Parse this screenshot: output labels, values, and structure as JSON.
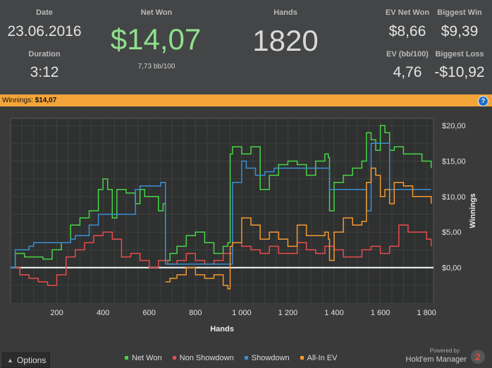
{
  "stats": {
    "date_label": "Date",
    "date": "23.06.2016",
    "duration_label": "Duration",
    "duration": "3:12",
    "net_won_label": "Net Won",
    "net_won": "$14,07",
    "net_won_bb": "7,73 bb/100",
    "hands_label": "Hands",
    "hands": "1820",
    "ev_net_won_label": "EV Net Won",
    "ev_net_won": "$8,66",
    "biggest_win_label": "Biggest Win",
    "biggest_win": "$9,39",
    "ev_bb_label": "EV (bb/100)",
    "ev_bb": "4,76",
    "biggest_loss_label": "Biggest Loss",
    "biggest_loss": "-$10,92"
  },
  "bar": {
    "label": "Winnings:",
    "value": "$14,07",
    "help": "?"
  },
  "chart_data": {
    "type": "line",
    "xlabel": "Hands",
    "ylabel": "Winnings",
    "xlim": [
      0,
      1830
    ],
    "ylim": [
      -5,
      21
    ],
    "xticks": [
      "200",
      "400",
      "600",
      "800",
      "1 000",
      "1 200",
      "1 400",
      "1 600",
      "1 800"
    ],
    "yticks": [
      "$0,00",
      "$5,00",
      "$10,00",
      "$15,00",
      "$20,00"
    ],
    "series": [
      {
        "name": "Net Won",
        "color": "#46d646",
        "x": [
          0,
          20,
          60,
          100,
          140,
          180,
          220,
          260,
          300,
          340,
          380,
          400,
          420,
          440,
          460,
          500,
          540,
          560,
          580,
          620,
          640,
          660,
          670,
          690,
          720,
          760,
          800,
          840,
          880,
          920,
          940,
          950,
          960,
          1000,
          1040,
          1080,
          1120,
          1160,
          1200,
          1240,
          1280,
          1320,
          1360,
          1375,
          1380,
          1400,
          1440,
          1480,
          1520,
          1540,
          1560,
          1580,
          1600,
          1620,
          1640,
          1660,
          1700,
          1740,
          1780,
          1820
        ],
        "y": [
          0,
          2,
          1.5,
          1.5,
          1.2,
          2.5,
          3.5,
          6,
          7,
          8,
          11,
          12.5,
          11,
          7,
          11,
          10.5,
          9,
          11,
          10,
          10,
          8,
          9,
          1,
          2,
          3,
          4.5,
          5,
          3.5,
          2,
          3,
          3.5,
          16,
          17,
          16,
          17,
          11,
          13,
          14.5,
          15,
          14.5,
          13,
          15,
          16,
          15.5,
          8,
          12,
          13,
          14,
          15,
          19,
          18,
          16.5,
          20,
          19,
          16.5,
          17,
          16,
          16,
          15,
          14
        ]
      },
      {
        "name": "Non Showdown",
        "color": "#e84c4c",
        "x": [
          0,
          40,
          80,
          120,
          160,
          200,
          240,
          280,
          320,
          360,
          400,
          440,
          480,
          520,
          560,
          600,
          640,
          680,
          720,
          760,
          800,
          840,
          880,
          920,
          960,
          1000,
          1040,
          1080,
          1120,
          1160,
          1200,
          1240,
          1280,
          1320,
          1360,
          1400,
          1440,
          1480,
          1520,
          1560,
          1600,
          1640,
          1680,
          1720,
          1760,
          1800,
          1820
        ],
        "y": [
          0,
          -1,
          -1.5,
          -2,
          -2.5,
          -1,
          1.5,
          2.5,
          3.5,
          4.5,
          5,
          4,
          1.5,
          2,
          1,
          0,
          1,
          0.5,
          1,
          2,
          1,
          0.5,
          1,
          2,
          3.5,
          3,
          2.5,
          2,
          3,
          2,
          2,
          3.5,
          2.5,
          2,
          3,
          2.5,
          1.5,
          1.5,
          2.5,
          3,
          2,
          3,
          6,
          5,
          5,
          4,
          3
        ]
      },
      {
        "name": "Showdown",
        "color": "#3a8fd6",
        "x": [
          0,
          20,
          80,
          100,
          200,
          260,
          280,
          340,
          380,
          400,
          420,
          500,
          540,
          560,
          580,
          640,
          650,
          670,
          700,
          800,
          900,
          950,
          960,
          1000,
          1020,
          1060,
          1100,
          1140,
          1200,
          1240,
          1300,
          1375,
          1380,
          1400,
          1500,
          1540,
          1560,
          1620,
          1640,
          1680,
          1720,
          1760,
          1820
        ],
        "y": [
          0,
          2.5,
          3,
          3.5,
          3.5,
          4,
          4.5,
          6,
          7.5,
          7.5,
          7.5,
          7.5,
          11,
          11.5,
          11.5,
          11.5,
          12,
          0.5,
          0.5,
          0.5,
          0.5,
          0.5,
          12,
          15,
          14,
          13,
          13.5,
          14,
          14,
          14,
          14,
          14,
          11,
          11,
          11,
          8,
          17.5,
          17.5,
          11,
          11,
          11,
          11,
          11
        ]
      },
      {
        "name": "All-In EV",
        "color": "#f39a2e",
        "x": [
          670,
          690,
          720,
          760,
          800,
          840,
          880,
          920,
          940,
          950,
          960,
          1000,
          1040,
          1080,
          1120,
          1160,
          1200,
          1240,
          1280,
          1320,
          1360,
          1375,
          1380,
          1400,
          1440,
          1480,
          1520,
          1540,
          1560,
          1580,
          1600,
          1620,
          1640,
          1660,
          1700,
          1740,
          1780,
          1820
        ],
        "y": [
          -2,
          -1.5,
          -1,
          0,
          -1,
          -1.5,
          -1,
          -2.5,
          -3,
          3,
          3.5,
          7,
          6,
          4,
          5,
          4,
          3,
          6,
          4.5,
          4.5,
          5,
          4,
          1,
          5,
          7,
          6,
          6.5,
          12,
          14,
          13,
          10,
          11,
          9,
          12,
          11.5,
          10,
          10,
          9
        ]
      }
    ]
  },
  "footer": {
    "options_label": "Options",
    "legend": [
      "Net Won",
      "Non Showdown",
      "Showdown",
      "All-In EV"
    ],
    "powered_by": "Powered by",
    "brand": "Hold'em Manager",
    "brand_badge": "2"
  }
}
